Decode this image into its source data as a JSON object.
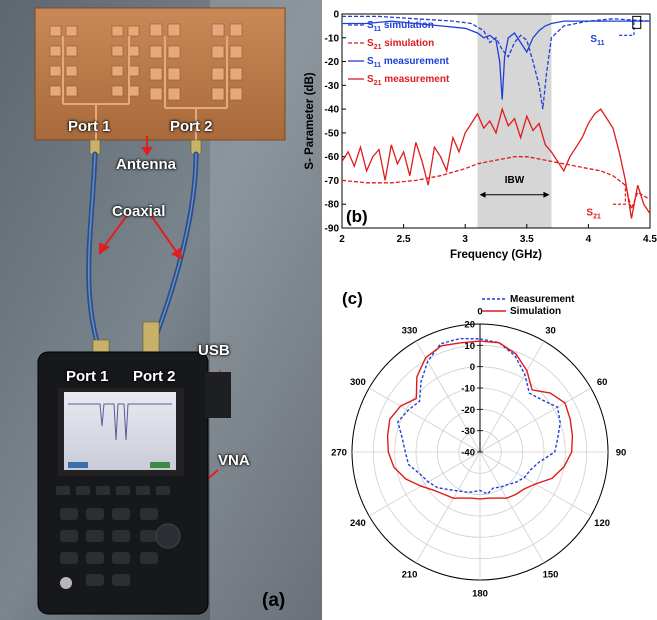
{
  "panel_a": {
    "labels": {
      "antenna_port1": "Port 1",
      "antenna_port2": "Port 2",
      "antenna": "Antenna",
      "coaxial": "Coaxial",
      "usb": "USB",
      "vna_port1": "Port 1",
      "vna_port2": "Port 2",
      "vna": "VNA"
    },
    "letter": "(a)"
  },
  "chart_data": [
    {
      "id": "b",
      "type": "line",
      "panel_letter": "(b)",
      "xlabel": "Frequency (GHz)",
      "ylabel": "S- Parameter (dB)",
      "xlim": [
        2,
        4.5
      ],
      "ylim": [
        -90,
        0
      ],
      "xticks": [
        "2",
        "2.5",
        "3",
        "3.5",
        "4",
        "4.5"
      ],
      "yticks": [
        "0",
        "-10",
        "-20",
        "-30",
        "-40",
        "-50",
        "-60",
        "-70",
        "-80",
        "-90"
      ],
      "band": {
        "label": "IBW",
        "from": 3.1,
        "to": 3.7
      },
      "annotations": [
        {
          "text": "S11",
          "base": "S",
          "sub": "11",
          "x": 4.0,
          "y": -10,
          "color": "#1f3fd8"
        },
        {
          "text": "S21",
          "base": "S",
          "sub": "21",
          "x": 4.0,
          "y": -83,
          "color": "#e01b1b"
        }
      ],
      "legend_position": "top-left",
      "series": [
        {
          "name": "S11 simulation",
          "base": "S",
          "sub": "11",
          "suffix": " simulation",
          "color": "#1f3fd8",
          "dash": "4,2",
          "x": [
            2.0,
            2.3,
            2.6,
            2.9,
            3.05,
            3.15,
            3.2,
            3.25,
            3.3,
            3.35,
            3.4,
            3.45,
            3.5,
            3.55,
            3.6,
            3.63,
            3.66,
            3.7,
            3.8,
            3.9,
            4.0,
            4.2,
            4.5
          ],
          "y": [
            -1,
            -1,
            -2,
            -3,
            -4,
            -7,
            -12,
            -10,
            -15,
            -18,
            -12,
            -9,
            -11,
            -20,
            -30,
            -40,
            -25,
            -10,
            -5,
            -4,
            -3,
            -2,
            -3
          ]
        },
        {
          "name": "S21 simulation",
          "base": "S",
          "sub": "21",
          "suffix": " simulation",
          "color": "#e01b1b",
          "dash": "4,2",
          "x": [
            2.0,
            2.2,
            2.4,
            2.6,
            2.8,
            3.0,
            3.1,
            3.2,
            3.3,
            3.4,
            3.5,
            3.6,
            3.7,
            3.8,
            3.9,
            4.0,
            4.1,
            4.2,
            4.3,
            4.35,
            4.4,
            4.5
          ],
          "y": [
            -70,
            -71,
            -71,
            -70,
            -68,
            -65,
            -63,
            -62,
            -61,
            -60,
            -60,
            -61,
            -62,
            -63,
            -64,
            -65,
            -66,
            -68,
            -72,
            -82,
            -75,
            -78
          ]
        },
        {
          "name": "S11 measurement",
          "base": "S",
          "sub": "11",
          "suffix": " measurement",
          "color": "#1f3fd8",
          "dash": "",
          "x": [
            2.0,
            2.2,
            2.4,
            2.6,
            2.8,
            3.0,
            3.05,
            3.1,
            3.15,
            3.2,
            3.25,
            3.28,
            3.3,
            3.32,
            3.35,
            3.4,
            3.45,
            3.5,
            3.55,
            3.6,
            3.65,
            3.7,
            3.8,
            3.9,
            4.0,
            4.2,
            4.4,
            4.5
          ],
          "y": [
            -4,
            -4,
            -3,
            -4,
            -5,
            -6,
            -7,
            -8,
            -10,
            -9,
            -11,
            -20,
            -36,
            -18,
            -10,
            -8,
            -12,
            -16,
            -10,
            -7,
            -5,
            -4,
            -3,
            -3,
            -3,
            -3,
            -3,
            -3
          ]
        },
        {
          "name": "S21 measurement",
          "base": "S",
          "sub": "21",
          "suffix": " measurement",
          "color": "#e01b1b",
          "dash": "",
          "x": [
            2.0,
            2.05,
            2.1,
            2.15,
            2.2,
            2.25,
            2.3,
            2.35,
            2.4,
            2.45,
            2.5,
            2.55,
            2.6,
            2.65,
            2.7,
            2.75,
            2.8,
            2.85,
            2.9,
            2.95,
            3.0,
            3.05,
            3.1,
            3.15,
            3.2,
            3.25,
            3.3,
            3.35,
            3.4,
            3.45,
            3.5,
            3.55,
            3.6,
            3.65,
            3.7,
            3.75,
            3.8,
            3.85,
            3.9,
            3.95,
            4.0,
            4.05,
            4.1,
            4.15,
            4.2,
            4.25,
            4.3,
            4.35,
            4.4,
            4.45,
            4.5
          ],
          "y": [
            -62,
            -58,
            -64,
            -56,
            -66,
            -60,
            -57,
            -70,
            -55,
            -63,
            -58,
            -68,
            -54,
            -62,
            -72,
            -56,
            -60,
            -66,
            -52,
            -58,
            -50,
            -46,
            -42,
            -48,
            -45,
            -50,
            -40,
            -47,
            -44,
            -52,
            -43,
            -49,
            -46,
            -55,
            -58,
            -62,
            -66,
            -60,
            -56,
            -52,
            -46,
            -42,
            -40,
            -44,
            -48,
            -58,
            -70,
            -86,
            -72,
            -80,
            -84
          ]
        }
      ]
    },
    {
      "id": "c",
      "type": "polar",
      "panel_letter": "(c)",
      "rlim": [
        -40,
        20
      ],
      "rticks": [
        "-40",
        "-30",
        "-20",
        "-10",
        "0",
        "10",
        "20"
      ],
      "angle_ticks": [
        "0",
        "30",
        "60",
        "90",
        "120",
        "150",
        "180",
        "210",
        "240",
        "270",
        "300",
        "330"
      ],
      "legend_position": "top-right",
      "series": [
        {
          "name": "Measurement",
          "color": "#1f3fd8",
          "dash": "3,2",
          "theta": [
            0,
            10,
            20,
            30,
            40,
            50,
            60,
            70,
            80,
            90,
            100,
            110,
            120,
            130,
            140,
            150,
            160,
            170,
            180,
            190,
            200,
            210,
            220,
            230,
            240,
            250,
            260,
            270,
            280,
            290,
            300,
            310,
            320,
            330,
            340,
            350
          ],
          "r": [
            13,
            12,
            8,
            2,
            -4,
            -2,
            2,
            0,
            -3,
            -5,
            -12,
            -15,
            -16,
            -18,
            -20,
            -21,
            -22,
            -20,
            -22,
            -21,
            -20,
            -19,
            -17,
            -14,
            -12,
            -10,
            -6,
            -5,
            -3,
            1,
            -1,
            -3,
            3,
            9,
            14,
            14
          ]
        },
        {
          "name": "Simulation",
          "color": "#e01b1b",
          "dash": "",
          "theta": [
            0,
            10,
            20,
            30,
            40,
            50,
            60,
            70,
            80,
            90,
            100,
            110,
            120,
            130,
            140,
            150,
            160,
            170,
            180,
            190,
            200,
            210,
            220,
            230,
            240,
            250,
            260,
            270,
            280,
            290,
            300,
            310,
            320,
            330,
            340,
            350
          ],
          "r": [
            12,
            12,
            9,
            4,
            -2,
            3,
            6,
            5,
            4,
            3,
            0,
            -4,
            -10,
            -13,
            -14,
            -15,
            -17,
            -18,
            -18,
            -18,
            -17,
            -15,
            -14,
            -12,
            -8,
            -3,
            1,
            3,
            4,
            5,
            3,
            -1,
            6,
            11,
            13,
            12
          ]
        }
      ]
    }
  ]
}
